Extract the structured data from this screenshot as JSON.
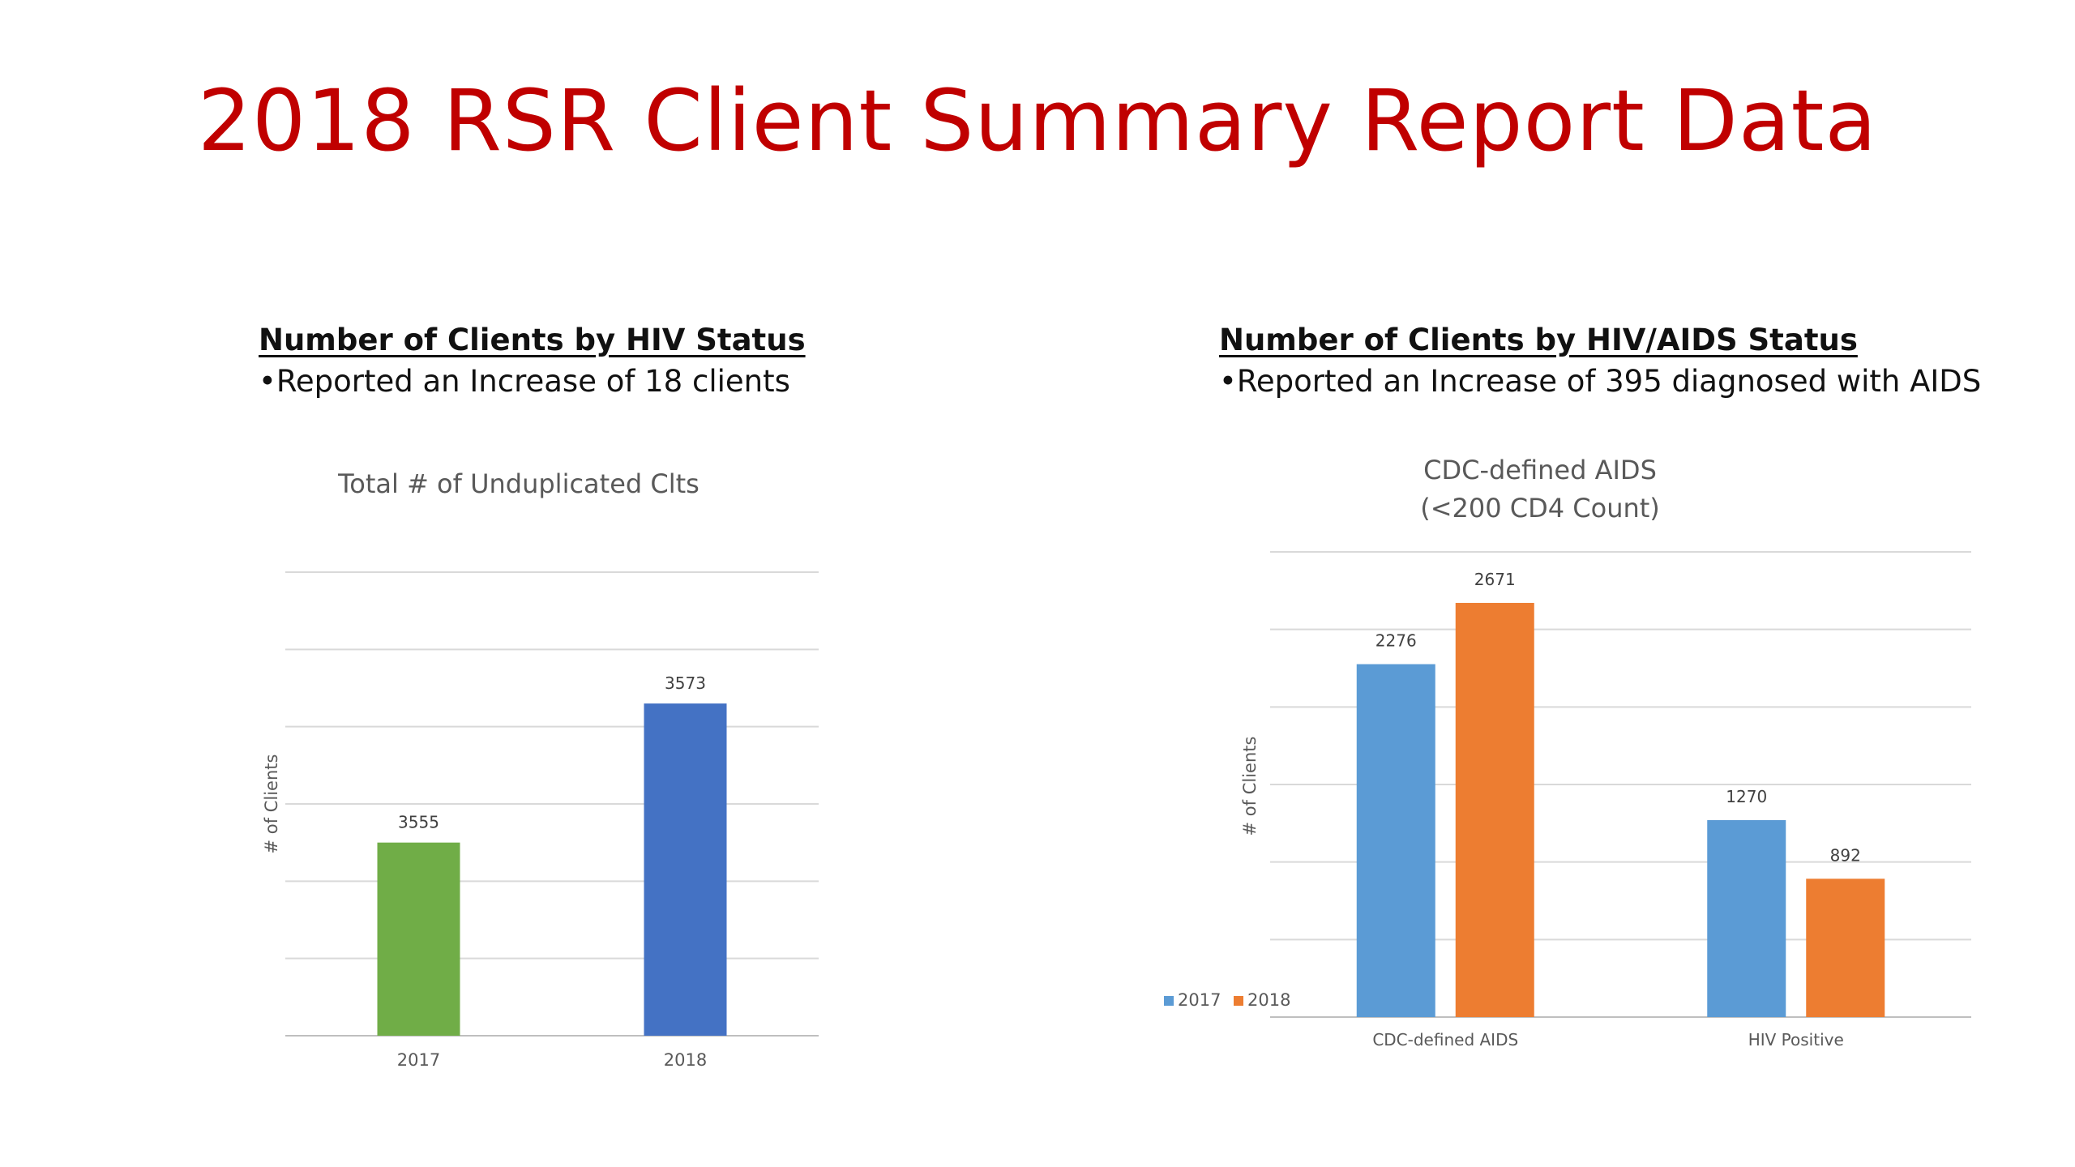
{
  "slide": {
    "title": "2018 RSR Client Summary Report Data"
  },
  "left_section": {
    "heading": "Number of Clients by HIV Status",
    "bullet": "•Reported an Increase of 18 clients"
  },
  "right_section": {
    "heading": "Number of Clients by HIV/AIDS Status",
    "bullet": "•Reported an Increase of 395 diagnosed with AIDS"
  },
  "chart_data": [
    {
      "type": "bar",
      "title": "Total # of Unduplicated Clts",
      "ylabel": "# of Clients",
      "xlabel": "",
      "categories": [
        "2017",
        "2018"
      ],
      "values": [
        3555,
        3573
      ],
      "data_labels": [
        "3555",
        "3573"
      ],
      "bar_colors": [
        "#70ad47",
        "#4472c4"
      ],
      "ylim": [
        3530,
        3590
      ],
      "grid": true,
      "legend": "none"
    },
    {
      "type": "bar",
      "title": "CDC-defined AIDS",
      "subtitle": "(<200 CD4 Count)",
      "ylabel": "# of Clients",
      "xlabel": "",
      "categories": [
        "CDC-defined AIDS",
        "HIV Positive"
      ],
      "series": [
        {
          "name": "2017",
          "color": "#5b9bd5",
          "values": [
            2276,
            1270
          ],
          "labels": [
            "2276",
            "1270"
          ]
        },
        {
          "name": "2018",
          "color": "#ed7d31",
          "values": [
            2671,
            892
          ],
          "labels": [
            "2671",
            "892"
          ]
        }
      ],
      "ylim": [
        0,
        3000
      ],
      "grid": true,
      "legend": "bottom-left"
    }
  ]
}
